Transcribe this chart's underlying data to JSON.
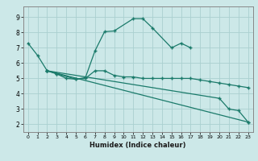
{
  "xlabel": "Humidex (Indice chaleur)",
  "background_color": "#cce8e8",
  "grid_color": "#aad0d0",
  "line_color": "#1a7a6a",
  "xlim": [
    -0.5,
    23.5
  ],
  "ylim": [
    1.5,
    9.7
  ],
  "yticks": [
    2,
    3,
    4,
    5,
    6,
    7,
    8,
    9
  ],
  "xticks": [
    0,
    1,
    2,
    3,
    4,
    5,
    6,
    7,
    8,
    9,
    10,
    11,
    12,
    13,
    14,
    15,
    16,
    17,
    18,
    19,
    20,
    21,
    22,
    23
  ],
  "series": [
    {
      "x": [
        0,
        1,
        2,
        3,
        5,
        6,
        7,
        8,
        9,
        11,
        12,
        13,
        15,
        16,
        17
      ],
      "y": [
        7.3,
        6.5,
        5.5,
        5.3,
        4.95,
        5.05,
        6.8,
        8.05,
        8.1,
        8.9,
        8.9,
        8.3,
        7.0,
        7.3,
        7.0
      ]
    },
    {
      "x": [
        2,
        3,
        4,
        5,
        6,
        7,
        8,
        9,
        10,
        11,
        12,
        13,
        14,
        15,
        16,
        17,
        18,
        19,
        20,
        21,
        22,
        23
      ],
      "y": [
        5.5,
        5.3,
        5.0,
        4.95,
        5.0,
        5.5,
        5.5,
        5.2,
        5.1,
        5.1,
        5.0,
        5.0,
        5.0,
        5.0,
        5.0,
        5.0,
        4.9,
        4.8,
        4.7,
        4.6,
        4.5,
        4.4
      ]
    },
    {
      "x": [
        2,
        23
      ],
      "y": [
        5.5,
        2.15
      ]
    },
    {
      "x": [
        2,
        20,
        21,
        22,
        23
      ],
      "y": [
        5.5,
        3.7,
        3.0,
        2.9,
        2.15
      ]
    }
  ]
}
